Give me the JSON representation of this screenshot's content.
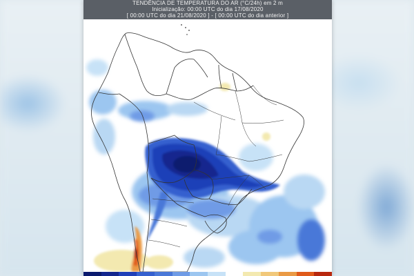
{
  "header": {
    "line1": "TENDÊNCIA DE TEMPERATURA DO AR (°C/24h) em 2 m",
    "line2": "Inicialização: 00:00 UTC do dia 17/08/2020",
    "line3": "[ 00:00 UTC do dia 21/08/2020 ] - [ 00:00 UTC do dia anterior ]"
  },
  "colors": {
    "strong_cooling": "#0a1a6e",
    "cooling": "#1f3fb8",
    "moderate_cooling": "#4a78d8",
    "light_cooling": "#9cc6f0",
    "slight_warming": "#f3e9b0",
    "warming": "#e05a1a"
  },
  "colorbar": [
    "#0a1a6e",
    "#13268e",
    "#1f3fb8",
    "#3560cf",
    "#4a78d8",
    "#6f9be6",
    "#9cc6f0",
    "#c7e2f7",
    "#ffffff",
    "#f3e9b0",
    "#f1c87a",
    "#ea9a45",
    "#e05a1a",
    "#b8280e"
  ]
}
